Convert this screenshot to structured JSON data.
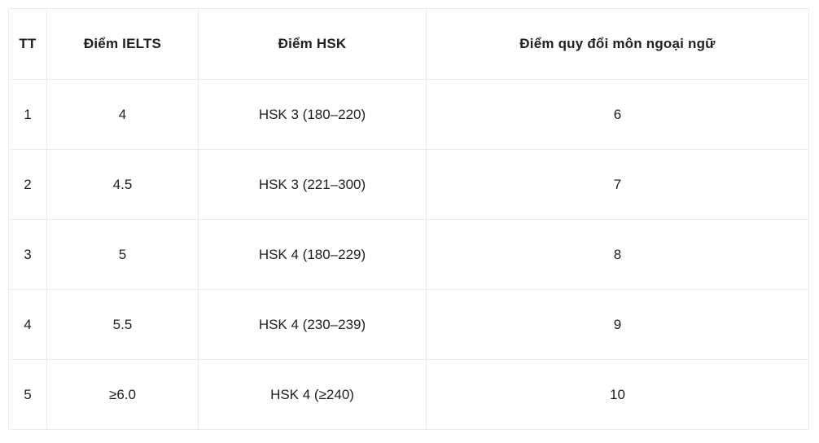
{
  "table": {
    "headers": {
      "tt": "TT",
      "ielts": "Điểm IELTS",
      "hsk": "Điểm HSK",
      "conversion": "Điểm quy đổi môn ngoại ngữ"
    },
    "rows": [
      {
        "tt": "1",
        "ielts": "4",
        "hsk": "HSK 3 (180–220)",
        "conversion": "6"
      },
      {
        "tt": "2",
        "ielts": "4.5",
        "hsk": "HSK 3 (221–300)",
        "conversion": "7"
      },
      {
        "tt": "3",
        "ielts": "5",
        "hsk": "HSK 4 (180–229)",
        "conversion": "8"
      },
      {
        "tt": "4",
        "ielts": "5.5",
        "hsk": "HSK 4 (230–239)",
        "conversion": "9"
      },
      {
        "tt": "5",
        "ielts": "≥6.0",
        "hsk": "HSK 4 (≥240)",
        "conversion": "10"
      }
    ],
    "colors": {
      "border": "#ebebeb",
      "text": "#212121",
      "background": "#ffffff"
    }
  }
}
